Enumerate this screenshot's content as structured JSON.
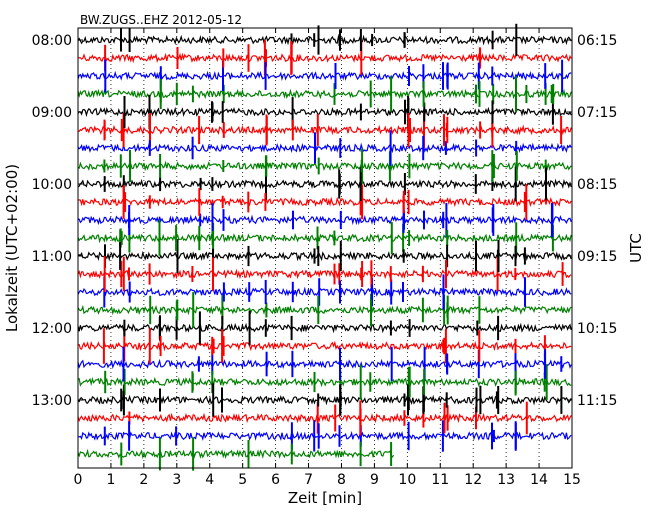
{
  "chart_data": {
    "type": "line",
    "title": "BW.ZUGS..EHZ 2012-05-12",
    "xlabel": "Zeit  [min]",
    "ylabel_left": "Lokalzeit (UTC+02:00)",
    "ylabel_right": "UTC",
    "xlim": [
      0,
      15
    ],
    "x_ticks": [
      "0",
      "1",
      "2",
      "3",
      "4",
      "5",
      "6",
      "7",
      "8",
      "9",
      "10",
      "11",
      "12",
      "13",
      "14",
      "15"
    ],
    "left_ticks": [
      {
        "label": "08:00",
        "trace": 0
      },
      {
        "label": "09:00",
        "trace": 4
      },
      {
        "label": "10:00",
        "trace": 8
      },
      {
        "label": "11:00",
        "trace": 12
      },
      {
        "label": "12:00",
        "trace": 16
      },
      {
        "label": "13:00",
        "trace": 20
      }
    ],
    "right_ticks": [
      {
        "label": "06:15",
        "trace": 0
      },
      {
        "label": "07:15",
        "trace": 4
      },
      {
        "label": "08:15",
        "trace": 8
      },
      {
        "label": "09:15",
        "trace": 12
      },
      {
        "label": "10:15",
        "trace": 16
      },
      {
        "label": "11:15",
        "trace": 20
      }
    ],
    "grid": "vertical dotted",
    "trace_interval_min": 15,
    "colors": [
      "#000000",
      "#ff0000",
      "#0000ff",
      "#008000"
    ],
    "last_trace_end_min": 9.6,
    "spikes_min": [
      0.8,
      1.3,
      1.4,
      1.55,
      2.2,
      2.5,
      3.0,
      3.5,
      3.7,
      4.1,
      4.4,
      5.2,
      5.7,
      6.5,
      7.2,
      7.3,
      7.8,
      7.95,
      8.6,
      8.9,
      9.5,
      9.9,
      10.05,
      10.5,
      11.1,
      11.2,
      12.1,
      12.2,
      12.6,
      12.75,
      13.3,
      13.6,
      14.2,
      14.4,
      14.7
    ]
  }
}
